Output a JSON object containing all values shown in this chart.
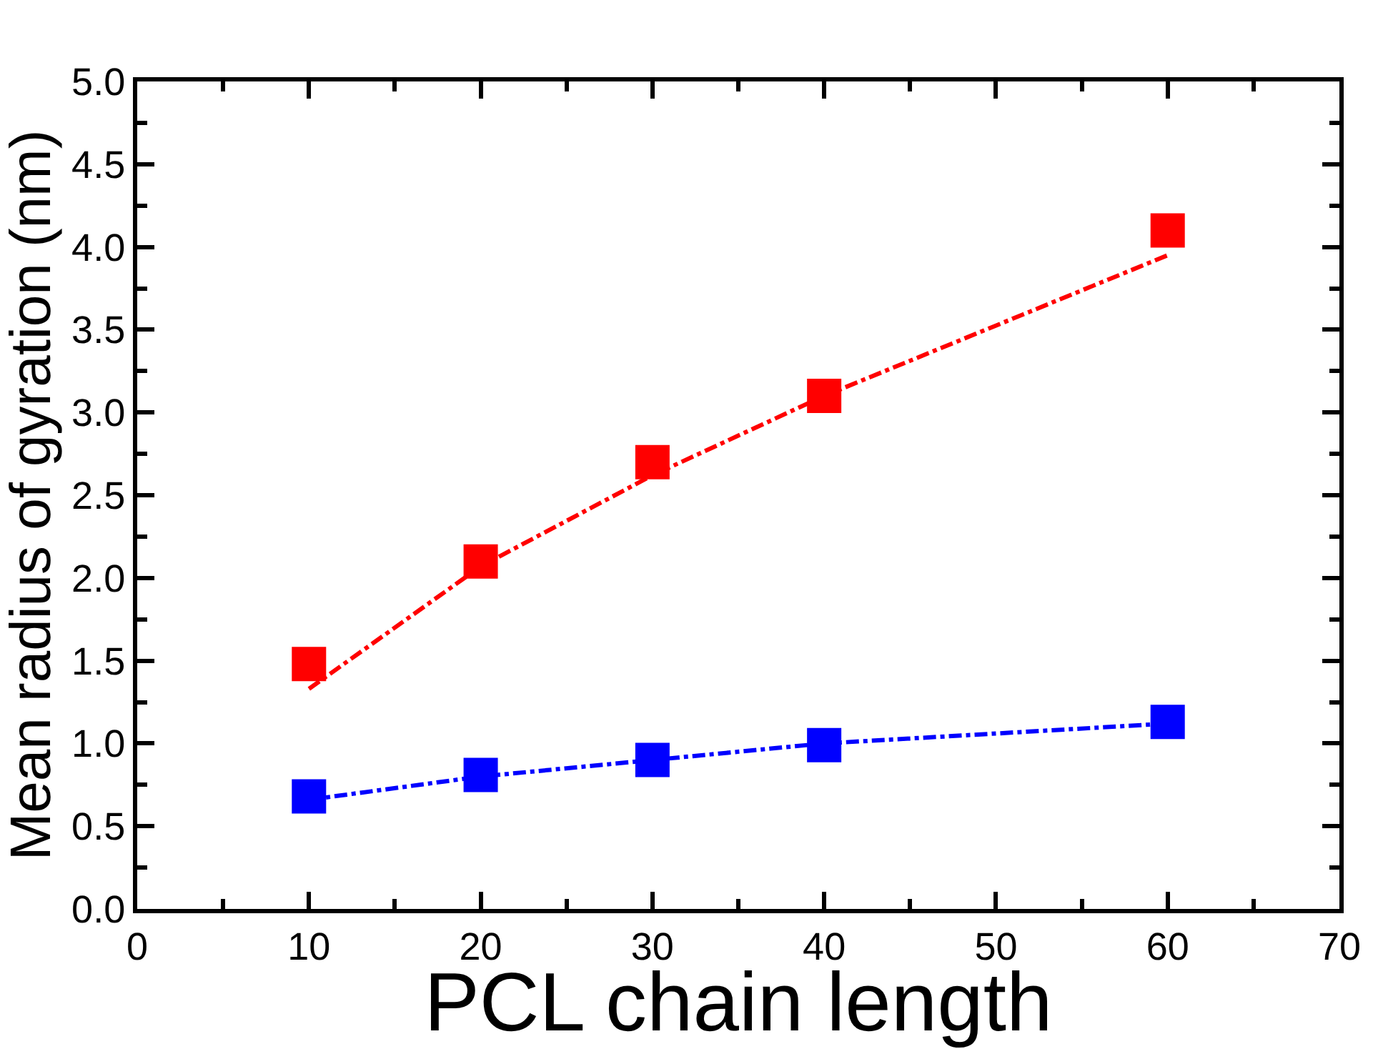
{
  "chart_data": {
    "type": "scatter",
    "xlabel": "PCL chain length",
    "ylabel": "Mean radius of gyration (nm)",
    "xlim": [
      0,
      70
    ],
    "xticks": [
      0,
      10,
      20,
      30,
      40,
      50,
      60,
      70
    ],
    "ylim": [
      0.0,
      5.0
    ],
    "yticks": [
      {
        "value": 0,
        "label": "0.0"
      },
      {
        "value": 0.5,
        "label": "0.5"
      },
      {
        "value": 1,
        "label": "1.0"
      },
      {
        "value": 1.5,
        "label": "1.5"
      },
      {
        "value": 2,
        "label": "2.0"
      },
      {
        "value": 2.5,
        "label": "2.5"
      },
      {
        "value": 3,
        "label": "3.0"
      },
      {
        "value": 3.5,
        "label": "3.5"
      },
      {
        "value": 4,
        "label": "4.0"
      },
      {
        "value": 4.5,
        "label": "4.5"
      },
      {
        "value": 5,
        "label": "5.0"
      }
    ],
    "marker": "square",
    "series": [
      {
        "type": "line",
        "line_style": "dashdot",
        "marker": "none",
        "color": "#ff0000",
        "x": [
          10,
          20,
          30,
          40,
          60
        ],
        "values": [
          1.33,
          2.07,
          2.62,
          3.1,
          3.95
        ]
      },
      {
        "type": "line",
        "line_style": "dashdot",
        "marker": "none",
        "color": "#0000ff",
        "x": [
          10,
          20,
          30,
          40,
          60
        ],
        "values": [
          0.66,
          0.8,
          0.9,
          1.0,
          1.12
        ]
      },
      {
        "color": "#ff0000",
        "x": [
          10,
          20,
          30,
          40,
          60
        ],
        "values": [
          1.48,
          2.1,
          2.7,
          3.1,
          4.1
        ]
      },
      {
        "color": "#0000ff",
        "x": [
          10,
          20,
          30,
          40,
          60
        ],
        "values": [
          0.68,
          0.81,
          0.9,
          0.99,
          1.13
        ]
      }
    ]
  }
}
